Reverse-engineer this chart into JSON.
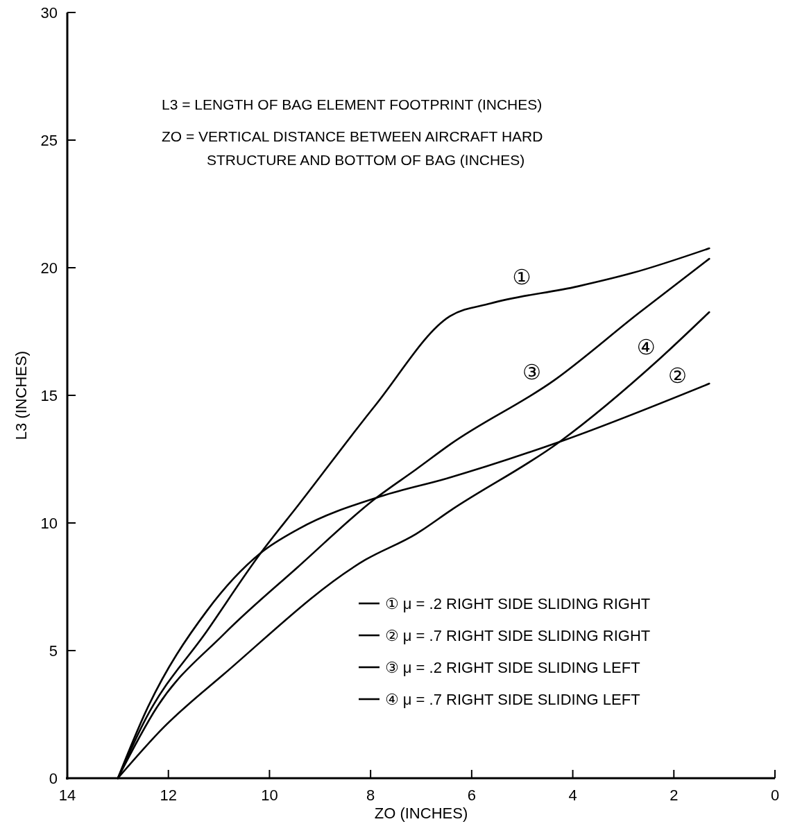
{
  "chart_data": {
    "type": "line",
    "xlabel": "ZO (INCHES)",
    "ylabel": "L3 (INCHES)",
    "xlim": [
      14,
      0
    ],
    "xticks": [
      14,
      12,
      10,
      8,
      6,
      4,
      2,
      0
    ],
    "ylim": [
      0,
      30
    ],
    "yticks": [
      0,
      5,
      10,
      15,
      20,
      25,
      30
    ],
    "grid": false,
    "legend": "bottom right",
    "marker": "none",
    "line_style": "solid",
    "series": [
      {
        "name": "① μ = .2 RIGHT SIDE SLIDING RIGHT",
        "color": "#000000",
        "x": [
          13,
          12.44,
          11.23,
          10.17,
          9.43,
          7.91,
          6.43,
          5.63,
          3.9,
          2.81,
          1.3
        ],
        "values": [
          0,
          2.36,
          5.79,
          8.83,
          10.7,
          14.6,
          18.1,
          18.6,
          19.27,
          19.8,
          20.76
        ]
      },
      {
        "name": "② μ = .7 RIGHT SIDE SLIDING RIGHT",
        "color": "#000000",
        "x": [
          13,
          12.44,
          11.23,
          10.17,
          9.43,
          7.77,
          6.5,
          4.26,
          1.3
        ],
        "values": [
          0,
          2.64,
          6.58,
          8.83,
          9.76,
          11.06,
          11.74,
          13.18,
          15.46
        ]
      },
      {
        "name": "③ μ = .2 RIGHT SIDE SLIDING LEFT",
        "color": "#000000",
        "x": [
          13,
          12.23,
          10.9,
          9.43,
          7.91,
          7.1,
          6.41,
          4.36,
          2.71,
          1.3
        ],
        "values": [
          0,
          2.77,
          5.65,
          8.29,
          10.95,
          12.1,
          13.1,
          15.6,
          18.2,
          20.35
        ]
      },
      {
        "name": "④ μ = .7 RIGHT SIDE SLIDING LEFT",
        "color": "#000000",
        "x": [
          13,
          12.1,
          10.9,
          8.1,
          7.1,
          6.41,
          4.26,
          2.3,
          1.3
        ],
        "values": [
          0,
          1.98,
          4.08,
          8.56,
          9.57,
          10.5,
          13.18,
          16.4,
          18.26
        ]
      }
    ],
    "annotations": [
      "L3 = LENGTH OF BAG ELEMENT FOOTPRINT (INCHES)",
      "ZO = VERTICAL DISTANCE BETWEEN AIRCRAFT HARD\nSTRUCTURE AND BOTTOM OF BAG (INCHES)",
      {
        "text": "①",
        "x": 4.9,
        "y": 18.9
      },
      {
        "text": "③",
        "x": 4.7,
        "y": 15.2
      },
      {
        "text": "④",
        "x": 2.44,
        "y": 16.17
      },
      {
        "text": "②",
        "x": 1.82,
        "y": 15.06
      }
    ]
  }
}
